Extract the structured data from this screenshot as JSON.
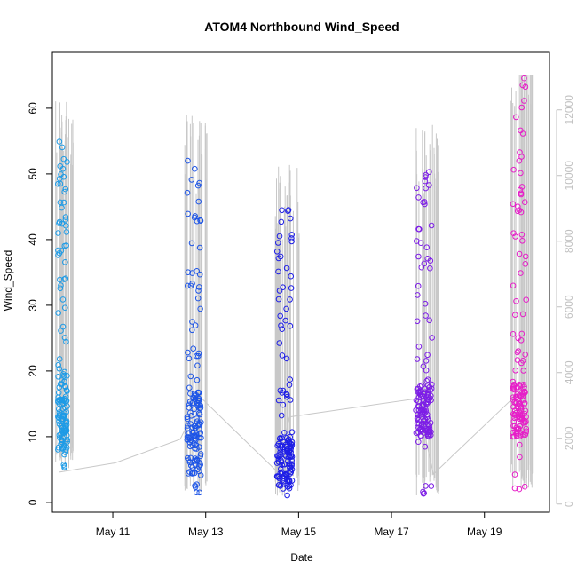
{
  "chart_data": {
    "type": "scatter",
    "title": "ATOM4 Northbound Wind_Speed",
    "xlabel": "Date",
    "ylabel": "Wind_Speed",
    "x_ticks": [
      "May 11",
      "May 13",
      "May 15",
      "May 17",
      "May 19"
    ],
    "y_ticks": [
      "0",
      "10",
      "20",
      "30",
      "40",
      "50",
      "60"
    ],
    "y2_ticks": [
      "0",
      "2000",
      "4000",
      "6000",
      "8000",
      "10000",
      "12000"
    ],
    "x_range_days": [
      9.7,
      20.4
    ],
    "x_tick_days": [
      11,
      13,
      15,
      17,
      19
    ],
    "ylim": [
      -1.5,
      68.5
    ],
    "y2lim": [
      -250,
      13750
    ],
    "grid": false,
    "legend": "none",
    "colors": {
      "line": "#c8c8c8",
      "secondary_axis": "#c0c0c0",
      "clusters": [
        "#1e9be6",
        "#1e55e6",
        "#1e1ee6",
        "#7d1ee6",
        "#e61ec8"
      ]
    },
    "clusters": [
      {
        "day": 9.92,
        "width": 0.2,
        "y_min": 5,
        "y_max": 55,
        "dense_low": 8,
        "dense_high": 20
      },
      {
        "day": 12.75,
        "width": 0.3,
        "y_min": 1.5,
        "y_max": 52,
        "dense_low": 4,
        "dense_high": 17
      },
      {
        "day": 14.7,
        "width": 0.33,
        "y_min": 1,
        "y_max": 45,
        "dense_low": 2,
        "dense_high": 10
      },
      {
        "day": 17.7,
        "width": 0.35,
        "y_min": 1,
        "y_max": 51,
        "dense_low": 10,
        "dense_high": 18
      },
      {
        "day": 19.75,
        "width": 0.3,
        "y_min": 2,
        "y_max": 65,
        "dense_low": 10,
        "dense_high": 18
      }
    ],
    "elevation_path": [
      [
        9.85,
        4.6
      ],
      [
        11.05,
        6.0
      ],
      [
        12.45,
        9.6
      ],
      [
        12.9,
        15.9
      ],
      [
        14.55,
        4.6
      ],
      [
        14.8,
        13.0
      ],
      [
        17.55,
        15.8
      ],
      [
        17.9,
        4.3
      ],
      [
        19.65,
        16.1
      ],
      [
        19.85,
        17.5
      ]
    ]
  }
}
